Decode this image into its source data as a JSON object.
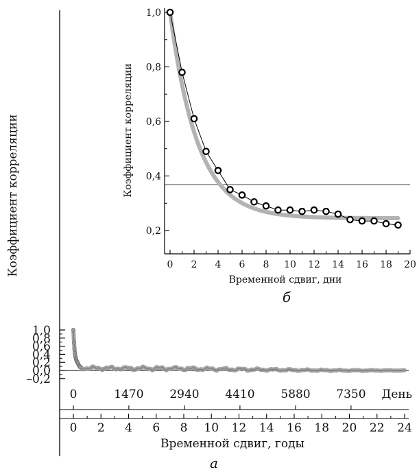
{
  "chart_data": [
    {
      "type": "scatter",
      "panel_label": "а",
      "ylabel": "Коэффициент корреляции",
      "xlabel": "Временной сдвиг, годы",
      "xlim": [
        0,
        24
      ],
      "ylim": [
        -0.2,
        1.1
      ],
      "x_ticks": [
        "0",
        "2",
        "4",
        "6",
        "8",
        "10",
        "12",
        "14",
        "16",
        "18",
        "20",
        "22",
        "24"
      ],
      "y_ticks": [
        "–0,2",
        "0,0",
        "0,2",
        "0,4",
        "0,6",
        "0,8",
        "1,0"
      ],
      "y_tick_values": [
        -0.2,
        0.0,
        0.2,
        0.4,
        0.6,
        0.8,
        1.0
      ],
      "secondary_x": {
        "unit_label": "День",
        "ticks": [
          "0",
          "1470",
          "2940",
          "4410",
          "5880",
          "7350"
        ],
        "tick_years": [
          0,
          4.02,
          8.05,
          12.07,
          16.1,
          20.12
        ]
      },
      "series": [
        {
          "color": "#9a9a9a",
          "initial_points": [
            [
              0,
              1.0
            ],
            [
              0.05,
              0.685
            ],
            [
              0.08,
              0.535
            ],
            [
              0.11,
              0.435
            ],
            [
              0.14,
              0.365
            ],
            [
              0.17,
              0.31
            ],
            [
              0.2,
              0.275
            ],
            [
              0.23,
              0.245
            ],
            [
              0.26,
              0.22
            ],
            [
              0.3,
              0.2
            ],
            [
              0.34,
              0.17
            ],
            [
              0.38,
              0.14
            ],
            [
              0.42,
              0.115
            ],
            [
              0.46,
              0.095
            ],
            [
              0.5,
              0.08
            ]
          ],
          "envelope": {
            "x": [
              0.5,
              2,
              4,
              6,
              8,
              10,
              12,
              14,
              16,
              18,
              20,
              22,
              24
            ],
            "mean": [
              0.06,
              0.055,
              0.05,
              0.05,
              0.045,
              0.035,
              0.025,
              0.02,
              0.01,
              0.005,
              0.0,
              0.0,
              0.0
            ],
            "amplitude": [
              0.045,
              0.045,
              0.045,
              0.05,
              0.045,
              0.04,
              0.035,
              0.03,
              0.025,
              0.02,
              0.018,
              0.012,
              0.008
            ]
          }
        }
      ]
    },
    {
      "type": "scatter",
      "panel_label": "б",
      "ylabel": "Коэффициент корреляции",
      "xlabel": "Временной сдвиг, дни",
      "xlim": [
        0,
        20
      ],
      "ylim": [
        0.15,
        1.0
      ],
      "x_ticks": [
        "0",
        "2",
        "4",
        "6",
        "8",
        "10",
        "12",
        "14",
        "16",
        "18",
        "20"
      ],
      "y_ticks": [
        "0,2",
        "0,4",
        "0,6",
        "0,8",
        "1,0"
      ],
      "y_tick_values": [
        0.2,
        0.4,
        0.6,
        0.8,
        1.0
      ],
      "reference_line_y": 0.368,
      "series": [
        {
          "marker": "open-circle",
          "color": "#000000",
          "x": [
            0,
            1,
            2,
            3,
            4,
            5,
            6,
            7,
            8,
            9,
            10,
            11,
            12,
            13,
            14,
            15,
            16,
            17,
            18,
            19
          ],
          "y": [
            1.0,
            0.78,
            0.61,
            0.49,
            0.42,
            0.35,
            0.33,
            0.305,
            0.29,
            0.275,
            0.275,
            0.27,
            0.275,
            0.27,
            0.26,
            0.24,
            0.235,
            0.235,
            0.225,
            0.22
          ]
        },
        {
          "type": "line",
          "color": "#b3b3b3",
          "fit": {
            "a": 0.755,
            "tau": 2.3,
            "c": 0.245
          },
          "x_range": [
            0,
            19
          ]
        }
      ]
    }
  ]
}
